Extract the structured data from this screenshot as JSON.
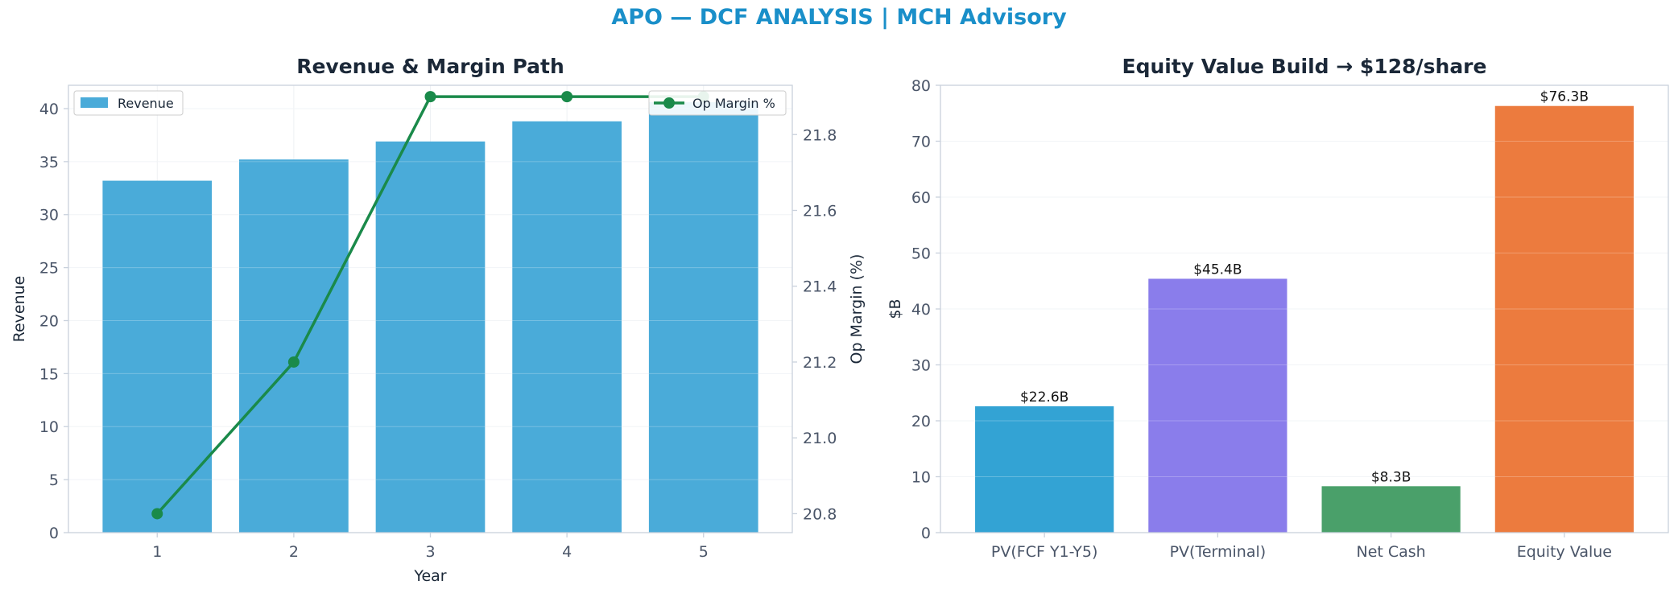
{
  "title": "APO — DCF ANALYSIS | MCH Advisory",
  "colors": {
    "title": "#1a8fc9",
    "revenue_bar": "#4aabd9",
    "margin_line": "#1a8a4a",
    "pv_fcf": "#33a3d4",
    "pv_terminal": "#8a7deb",
    "net_cash": "#4aa06a",
    "equity_value": "#ec7b3e"
  },
  "chart_data": [
    {
      "type": "bar",
      "title": "Revenue & Margin Path",
      "xlabel": "Year",
      "ylabel": "Revenue",
      "y2label": "Op Margin (%)",
      "categories": [
        "1",
        "2",
        "3",
        "4",
        "5"
      ],
      "ylim": [
        0,
        42.2
      ],
      "y2lim": [
        20.75,
        21.93
      ],
      "yticks": [
        "0",
        "5",
        "10",
        "15",
        "20",
        "25",
        "30",
        "35",
        "40"
      ],
      "y2ticks": [
        "20.8",
        "21.0",
        "21.2",
        "21.4",
        "21.6",
        "21.8"
      ],
      "grid": true,
      "series": [
        {
          "name": "Revenue",
          "type": "bar",
          "axis": "left",
          "values": [
            33.2,
            35.2,
            36.9,
            38.8,
            40.6
          ]
        },
        {
          "name": "Op Margin %",
          "type": "line",
          "axis": "right",
          "values": [
            20.8,
            21.2,
            21.9,
            21.9,
            21.9
          ]
        }
      ],
      "legend": [
        {
          "label": "Revenue",
          "placement": "top-left"
        },
        {
          "label": "Op Margin %",
          "placement": "top-right"
        }
      ]
    },
    {
      "type": "bar",
      "title": "Equity Value Build → $128/share",
      "xlabel": "",
      "ylabel": "$B",
      "categories": [
        "PV(FCF Y1-Y5)",
        "PV(Terminal)",
        "Net Cash",
        "Equity Value"
      ],
      "values": [
        22.6,
        45.4,
        8.3,
        76.3
      ],
      "data_labels": [
        "$22.6B",
        "$45.4B",
        "$8.3B",
        "$76.3B"
      ],
      "ylim": [
        0,
        80
      ],
      "yticks": [
        "0",
        "10",
        "20",
        "30",
        "40",
        "50",
        "60",
        "70",
        "80"
      ],
      "grid": true
    }
  ]
}
